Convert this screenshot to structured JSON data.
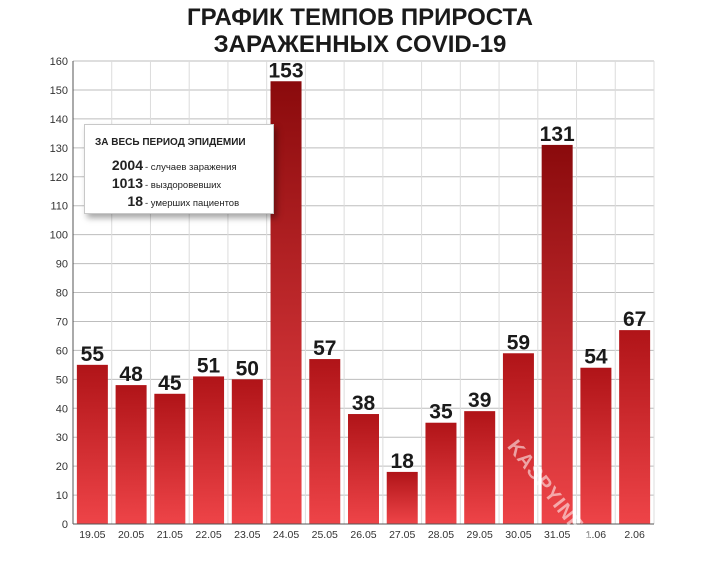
{
  "title_line1": "ГРАФИК ТЕМПОВ ПРИРОСТА",
  "title_line2": "ЗАРАЖЕННЫХ COVID-19",
  "info_box": {
    "title": "ЗА ВЕСЬ ПЕРИОД ЭПИДЕМИИ",
    "rows": [
      {
        "number": "2004",
        "text": "- случаев заражения"
      },
      {
        "number": "1013",
        "text": "- выздоровевших"
      },
      {
        "number": "18",
        "text": "- умерших пациентов"
      }
    ]
  },
  "watermark": "KASPYINFO.RU",
  "colors": {
    "bar_dark": "#b01418",
    "bar_light": "#ee4448",
    "bar_peak": "#8a0a0c"
  },
  "chart_data": {
    "type": "bar",
    "title": "ГРАФИК ТЕМПОВ ПРИРОСТА ЗАРАЖЕННЫХ COVID-19",
    "xlabel": "",
    "ylabel": "",
    "categories": [
      "19.05",
      "20.05",
      "21.05",
      "22.05",
      "23.05",
      "24.05",
      "25.05",
      "26.05",
      "27.05",
      "28.05",
      "29.05",
      "30.05",
      "31.05",
      "1.06",
      "2.06"
    ],
    "values": [
      55,
      48,
      45,
      51,
      50,
      153,
      57,
      38,
      18,
      35,
      39,
      59,
      131,
      54,
      67
    ],
    "ylim": [
      0,
      160
    ],
    "yticks": [
      0,
      10,
      20,
      30,
      40,
      50,
      60,
      70,
      80,
      90,
      100,
      110,
      120,
      130,
      140,
      150,
      160
    ],
    "grid": true,
    "data_labels": true
  }
}
